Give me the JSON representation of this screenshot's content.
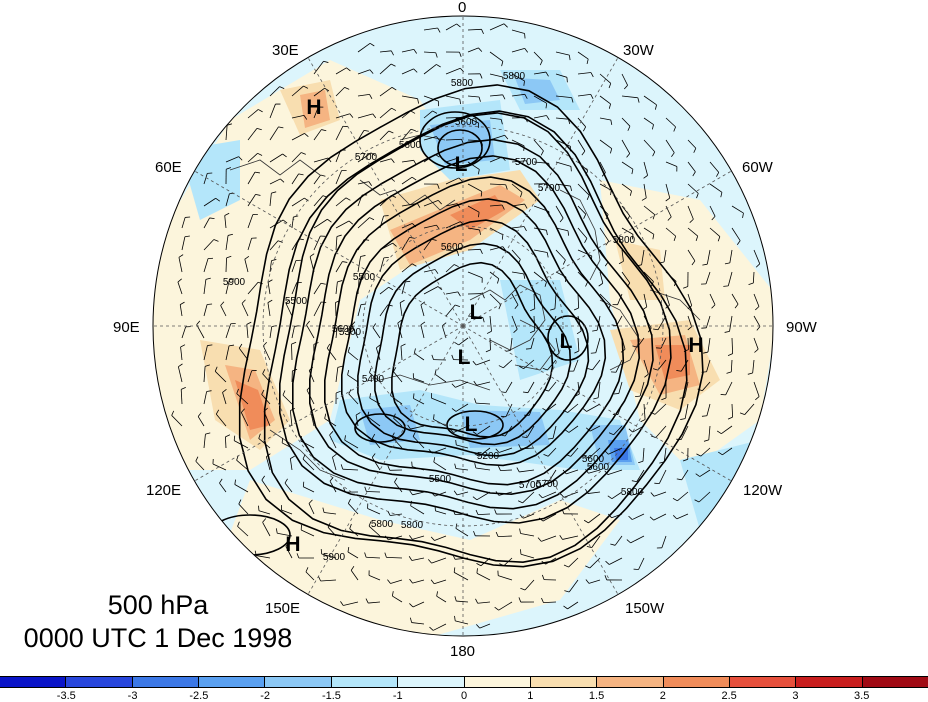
{
  "title": {
    "level": "500 hPa",
    "time": "0000 UTC 1 Dec 1998"
  },
  "longitude_labels": {
    "lon_0": "0",
    "lon_30w": "30W",
    "lon_60w": "60W",
    "lon_90w": "90W",
    "lon_120w": "120W",
    "lon_150w": "150W",
    "lon_180": "180",
    "lon_150e": "150E",
    "lon_120e": "120E",
    "lon_90e": "90E",
    "lon_60e": "60E",
    "lon_30e": "30E"
  },
  "contour_labels": [
    "5800",
    "5800",
    "5600",
    "5600",
    "5700",
    "5700",
    "5600",
    "5700",
    "5800",
    "5900",
    "5500",
    "5500",
    "5600",
    "5300",
    "5400",
    "5700",
    "5800",
    "5200",
    "5600",
    "5800",
    "5500",
    "5600",
    "5700",
    "5800",
    "5900"
  ],
  "centers": {
    "high": "H",
    "low": "L"
  },
  "colorbar": {
    "labels": [
      "-3.5",
      "-3",
      "-2.5",
      "-2",
      "-1.5",
      "-1",
      "0",
      "1",
      "1.5",
      "2",
      "2.5",
      "3",
      "3.5"
    ],
    "colors": [
      "#0a14c8",
      "#2846dc",
      "#3c78e6",
      "#5aa0f0",
      "#8cc8f5",
      "#b4e6fa",
      "#dcf5fc",
      "#fcf5dc",
      "#f8deb0",
      "#f5b482",
      "#f08c5a",
      "#e6503c",
      "#c81e1e",
      "#a00a14"
    ]
  },
  "palette": {
    "contour": "#000000",
    "grid": "#555555",
    "coast": "#333333"
  }
}
